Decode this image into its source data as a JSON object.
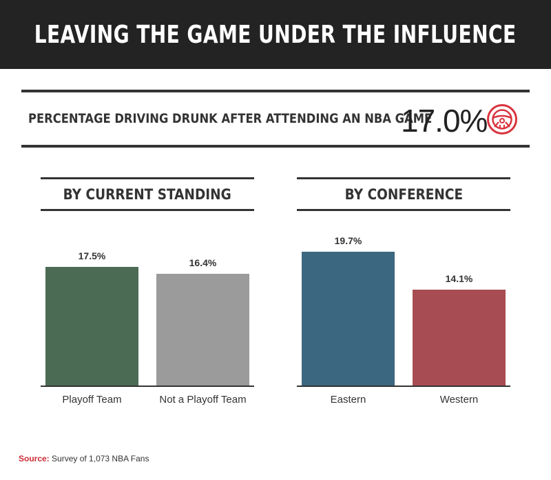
{
  "header": {
    "title": "LEAVING THE GAME UNDER THE INFLUENCE"
  },
  "summary": {
    "label": "PERCENTAGE DRIVING DRUNK AFTER ATTENDING AN NBA GAME",
    "value": "17.0%",
    "icon": "steering-wheel-icon",
    "icon_color": "#d9333e"
  },
  "chart_data": [
    {
      "type": "bar",
      "title": "BY CURRENT STANDING",
      "categories": [
        "Playoff Team",
        "Not a Playoff Team"
      ],
      "values": [
        17.5,
        16.4
      ],
      "value_labels": [
        "17.5%",
        "16.4%"
      ],
      "colors": [
        "#4b6b55",
        "#9b9b9b"
      ],
      "ylim": [
        0,
        20
      ],
      "grid": false
    },
    {
      "type": "bar",
      "title": "BY CONFERENCE",
      "categories": [
        "Eastern",
        "Western"
      ],
      "values": [
        19.7,
        14.1
      ],
      "value_labels": [
        "19.7%",
        "14.1%"
      ],
      "colors": [
        "#3c6781",
        "#a74c52"
      ],
      "ylim": [
        0,
        20
      ],
      "grid": false
    }
  ],
  "source": {
    "label": "Source:",
    "text": "Survey of 1,073 NBA Fans"
  }
}
